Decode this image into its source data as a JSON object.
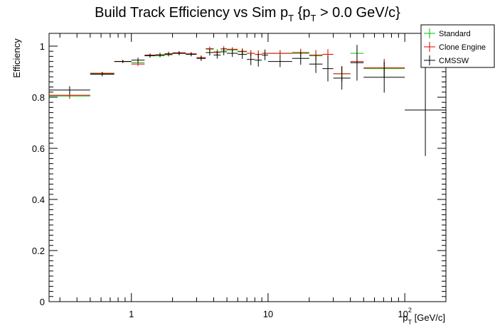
{
  "chart_data": {
    "type": "scatter",
    "title": "Build Track Efficiency vs Sim p",
    "title_parts": {
      "prefix": "Build Track Efficiency vs Sim p",
      "sub1": "T",
      "mid": " {p",
      "sub2": "T",
      "suffix": " > 0.0 GeV/c}"
    },
    "ylabel": "Efficiency",
    "xlabel_parts": {
      "main": "p",
      "sub": "T",
      "unit": " [GeV/c]"
    },
    "x_scale": "log",
    "xlim": [
      0.25,
      200
    ],
    "ylim": [
      0,
      1.05
    ],
    "x_ticks": [
      {
        "value": 1,
        "label": "1"
      },
      {
        "value": 10,
        "label": "10"
      },
      {
        "value": 100,
        "label": "10",
        "exp": "2"
      }
    ],
    "y_ticks": [
      {
        "value": 0,
        "label": "0"
      },
      {
        "value": 0.2,
        "label": "0.2"
      },
      {
        "value": 0.4,
        "label": "0.4"
      },
      {
        "value": 0.6,
        "label": "0.6"
      },
      {
        "value": 0.8,
        "label": "0.8"
      },
      {
        "value": 1.0,
        "label": "1"
      }
    ],
    "legend_position": "top-right",
    "series": [
      {
        "name": "Standard",
        "color": "#00c000",
        "points": [
          {
            "xlo": 0.25,
            "xhi": 0.5,
            "y": 0.805,
            "yerr": 0.008
          },
          {
            "xlo": 0.5,
            "xhi": 0.75,
            "y": 0.892,
            "yerr": 0.005
          },
          {
            "xlo": 0.75,
            "xhi": 1.0,
            "y": 0.94,
            "yerr": 0.005
          },
          {
            "xlo": 1.0,
            "xhi": 1.25,
            "y": 0.935,
            "yerr": 0.008
          },
          {
            "xlo": 1.25,
            "xhi": 1.5,
            "y": 0.962,
            "yerr": 0.006
          },
          {
            "xlo": 1.5,
            "xhi": 1.75,
            "y": 0.962,
            "yerr": 0.006
          },
          {
            "xlo": 1.75,
            "xhi": 2.0,
            "y": 0.966,
            "yerr": 0.007
          },
          {
            "xlo": 2.0,
            "xhi": 2.5,
            "y": 0.972,
            "yerr": 0.006
          },
          {
            "xlo": 2.5,
            "xhi": 3.0,
            "y": 0.968,
            "yerr": 0.006
          },
          {
            "xlo": 3.0,
            "xhi": 3.5,
            "y": 0.955,
            "yerr": 0.008
          },
          {
            "xlo": 3.5,
            "xhi": 4.0,
            "y": 0.988,
            "yerr": 0.008
          },
          {
            "xlo": 4.0,
            "xhi": 4.5,
            "y": 0.978,
            "yerr": 0.01
          },
          {
            "xlo": 4.5,
            "xhi": 5.0,
            "y": 0.985,
            "yerr": 0.01
          },
          {
            "xlo": 5.0,
            "xhi": 6.0,
            "y": 0.985,
            "yerr": 0.008
          },
          {
            "xlo": 6.0,
            "xhi": 7.0,
            "y": 0.978,
            "yerr": 0.012
          },
          {
            "xlo": 7.0,
            "xhi": 8.0,
            "y": 0.972,
            "yerr": 0.012
          },
          {
            "xlo": 8.0,
            "xhi": 9.0,
            "y": 0.968,
            "yerr": 0.015
          },
          {
            "xlo": 9.0,
            "xhi": 10.0,
            "y": 0.972,
            "yerr": 0.015
          },
          {
            "xlo": 10.0,
            "xhi": 15.0,
            "y": 0.972,
            "yerr": 0.012
          },
          {
            "xlo": 15.0,
            "xhi": 20.0,
            "y": 0.972,
            "yerr": 0.015
          },
          {
            "xlo": 20.0,
            "xhi": 25.0,
            "y": 0.962,
            "yerr": 0.02
          },
          {
            "xlo": 25.0,
            "xhi": 30.0,
            "y": 0.968,
            "yerr": 0.02
          },
          {
            "xlo": 30.0,
            "xhi": 40.0,
            "y": 0.892,
            "yerr": 0.03
          },
          {
            "xlo": 40.0,
            "xhi": 50.0,
            "y": 0.972,
            "yerr": 0.02
          },
          {
            "xlo": 50.0,
            "xhi": 100.0,
            "y": 0.912,
            "yerr": 0.035
          }
        ]
      },
      {
        "name": "Clone Engine",
        "color": "#e00000",
        "points": [
          {
            "xlo": 0.25,
            "xhi": 0.5,
            "y": 0.808,
            "yerr": 0.015
          },
          {
            "xlo": 0.5,
            "xhi": 0.75,
            "y": 0.894,
            "yerr": 0.005
          },
          {
            "xlo": 0.75,
            "xhi": 1.0,
            "y": 0.94,
            "yerr": 0.005
          },
          {
            "xlo": 1.0,
            "xhi": 1.25,
            "y": 0.93,
            "yerr": 0.008
          },
          {
            "xlo": 1.25,
            "xhi": 1.5,
            "y": 0.965,
            "yerr": 0.006
          },
          {
            "xlo": 1.5,
            "xhi": 1.75,
            "y": 0.965,
            "yerr": 0.006
          },
          {
            "xlo": 1.75,
            "xhi": 2.0,
            "y": 0.968,
            "yerr": 0.007
          },
          {
            "xlo": 2.0,
            "xhi": 2.5,
            "y": 0.974,
            "yerr": 0.006
          },
          {
            "xlo": 2.5,
            "xhi": 3.0,
            "y": 0.97,
            "yerr": 0.006
          },
          {
            "xlo": 3.0,
            "xhi": 3.5,
            "y": 0.955,
            "yerr": 0.008
          },
          {
            "xlo": 3.5,
            "xhi": 4.0,
            "y": 0.99,
            "yerr": 0.008
          },
          {
            "xlo": 4.0,
            "xhi": 4.5,
            "y": 0.975,
            "yerr": 0.01
          },
          {
            "xlo": 4.5,
            "xhi": 5.0,
            "y": 0.99,
            "yerr": 0.01
          },
          {
            "xlo": 5.0,
            "xhi": 6.0,
            "y": 0.988,
            "yerr": 0.008
          },
          {
            "xlo": 6.0,
            "xhi": 7.0,
            "y": 0.98,
            "yerr": 0.012
          },
          {
            "xlo": 7.0,
            "xhi": 8.0,
            "y": 0.972,
            "yerr": 0.012
          },
          {
            "xlo": 8.0,
            "xhi": 9.0,
            "y": 0.968,
            "yerr": 0.015
          },
          {
            "xlo": 9.0,
            "xhi": 10.0,
            "y": 0.972,
            "yerr": 0.015
          },
          {
            "xlo": 10.0,
            "xhi": 15.0,
            "y": 0.972,
            "yerr": 0.012
          },
          {
            "xlo": 15.0,
            "xhi": 20.0,
            "y": 0.975,
            "yerr": 0.015
          },
          {
            "xlo": 20.0,
            "xhi": 25.0,
            "y": 0.965,
            "yerr": 0.02
          },
          {
            "xlo": 25.0,
            "xhi": 30.0,
            "y": 0.968,
            "yerr": 0.02
          },
          {
            "xlo": 30.0,
            "xhi": 40.0,
            "y": 0.892,
            "yerr": 0.03
          },
          {
            "xlo": 40.0,
            "xhi": 50.0,
            "y": 0.94,
            "yerr": 0.03
          },
          {
            "xlo": 50.0,
            "xhi": 100.0,
            "y": 0.915,
            "yerr": 0.035
          }
        ]
      },
      {
        "name": "CMSSW",
        "color": "#000000",
        "points": [
          {
            "xlo": 0.25,
            "xhi": 0.5,
            "y": 0.828,
            "yerr": 0.015
          },
          {
            "xlo": 0.5,
            "xhi": 0.75,
            "y": 0.89,
            "yerr": 0.008
          },
          {
            "xlo": 0.75,
            "xhi": 1.0,
            "y": 0.94,
            "yerr": 0.006
          },
          {
            "xlo": 1.0,
            "xhi": 1.25,
            "y": 0.945,
            "yerr": 0.01
          },
          {
            "xlo": 1.25,
            "xhi": 1.5,
            "y": 0.963,
            "yerr": 0.008
          },
          {
            "xlo": 1.5,
            "xhi": 1.75,
            "y": 0.966,
            "yerr": 0.008
          },
          {
            "xlo": 1.75,
            "xhi": 2.0,
            "y": 0.97,
            "yerr": 0.008
          },
          {
            "xlo": 2.0,
            "xhi": 2.5,
            "y": 0.972,
            "yerr": 0.008
          },
          {
            "xlo": 2.5,
            "xhi": 3.0,
            "y": 0.968,
            "yerr": 0.008
          },
          {
            "xlo": 3.0,
            "xhi": 3.5,
            "y": 0.952,
            "yerr": 0.01
          },
          {
            "xlo": 3.5,
            "xhi": 4.0,
            "y": 0.975,
            "yerr": 0.012
          },
          {
            "xlo": 4.0,
            "xhi": 4.5,
            "y": 0.965,
            "yerr": 0.014
          },
          {
            "xlo": 4.5,
            "xhi": 5.0,
            "y": 0.978,
            "yerr": 0.014
          },
          {
            "xlo": 5.0,
            "xhi": 6.0,
            "y": 0.972,
            "yerr": 0.014
          },
          {
            "xlo": 6.0,
            "xhi": 7.0,
            "y": 0.968,
            "yerr": 0.018
          },
          {
            "xlo": 7.0,
            "xhi": 8.0,
            "y": 0.948,
            "yerr": 0.022
          },
          {
            "xlo": 8.0,
            "xhi": 9.0,
            "y": 0.945,
            "yerr": 0.025
          },
          {
            "xlo": 9.0,
            "xhi": 10.0,
            "y": 0.965,
            "yerr": 0.02
          },
          {
            "xlo": 10.0,
            "xhi": 15.0,
            "y": 0.94,
            "yerr": 0.022
          },
          {
            "xlo": 15.0,
            "xhi": 20.0,
            "y": 0.952,
            "yerr": 0.025
          },
          {
            "xlo": 20.0,
            "xhi": 25.0,
            "y": 0.93,
            "yerr": 0.035
          },
          {
            "xlo": 25.0,
            "xhi": 30.0,
            "y": 0.912,
            "yerr": 0.05
          },
          {
            "xlo": 30.0,
            "xhi": 40.0,
            "y": 0.875,
            "yerr": 0.045
          },
          {
            "xlo": 40.0,
            "xhi": 50.0,
            "y": 0.935,
            "yerr": 0.07
          },
          {
            "xlo": 50.0,
            "xhi": 100.0,
            "y": 0.878,
            "yerr": 0.06
          },
          {
            "xlo": 100.0,
            "xhi": 200.0,
            "y": 0.75,
            "yerr": 0.18
          }
        ]
      }
    ]
  }
}
